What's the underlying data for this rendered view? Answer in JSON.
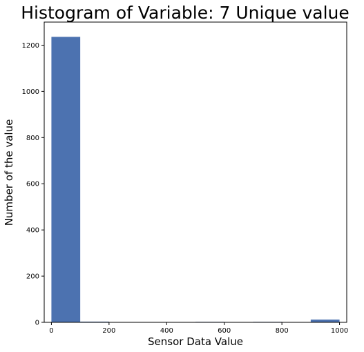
{
  "chart_data": {
    "type": "bar",
    "title": "Histogram of Variable: 7 Unique value",
    "xlabel": "Sensor Data Value",
    "ylabel": "Number of the value",
    "xlim": [
      -25,
      1025
    ],
    "ylim": [
      0,
      1300
    ],
    "xticks": [
      0,
      200,
      400,
      600,
      800,
      1000
    ],
    "yticks": [
      0,
      200,
      400,
      600,
      800,
      1000,
      1200
    ],
    "bin_edges": [
      0,
      100,
      200,
      300,
      400,
      500,
      600,
      700,
      800,
      900,
      1000
    ],
    "values": [
      1236,
      3,
      0,
      0,
      0,
      2,
      0,
      2,
      0,
      12
    ],
    "bar_color": "#4c72b0",
    "grid": false,
    "legend": "none"
  }
}
